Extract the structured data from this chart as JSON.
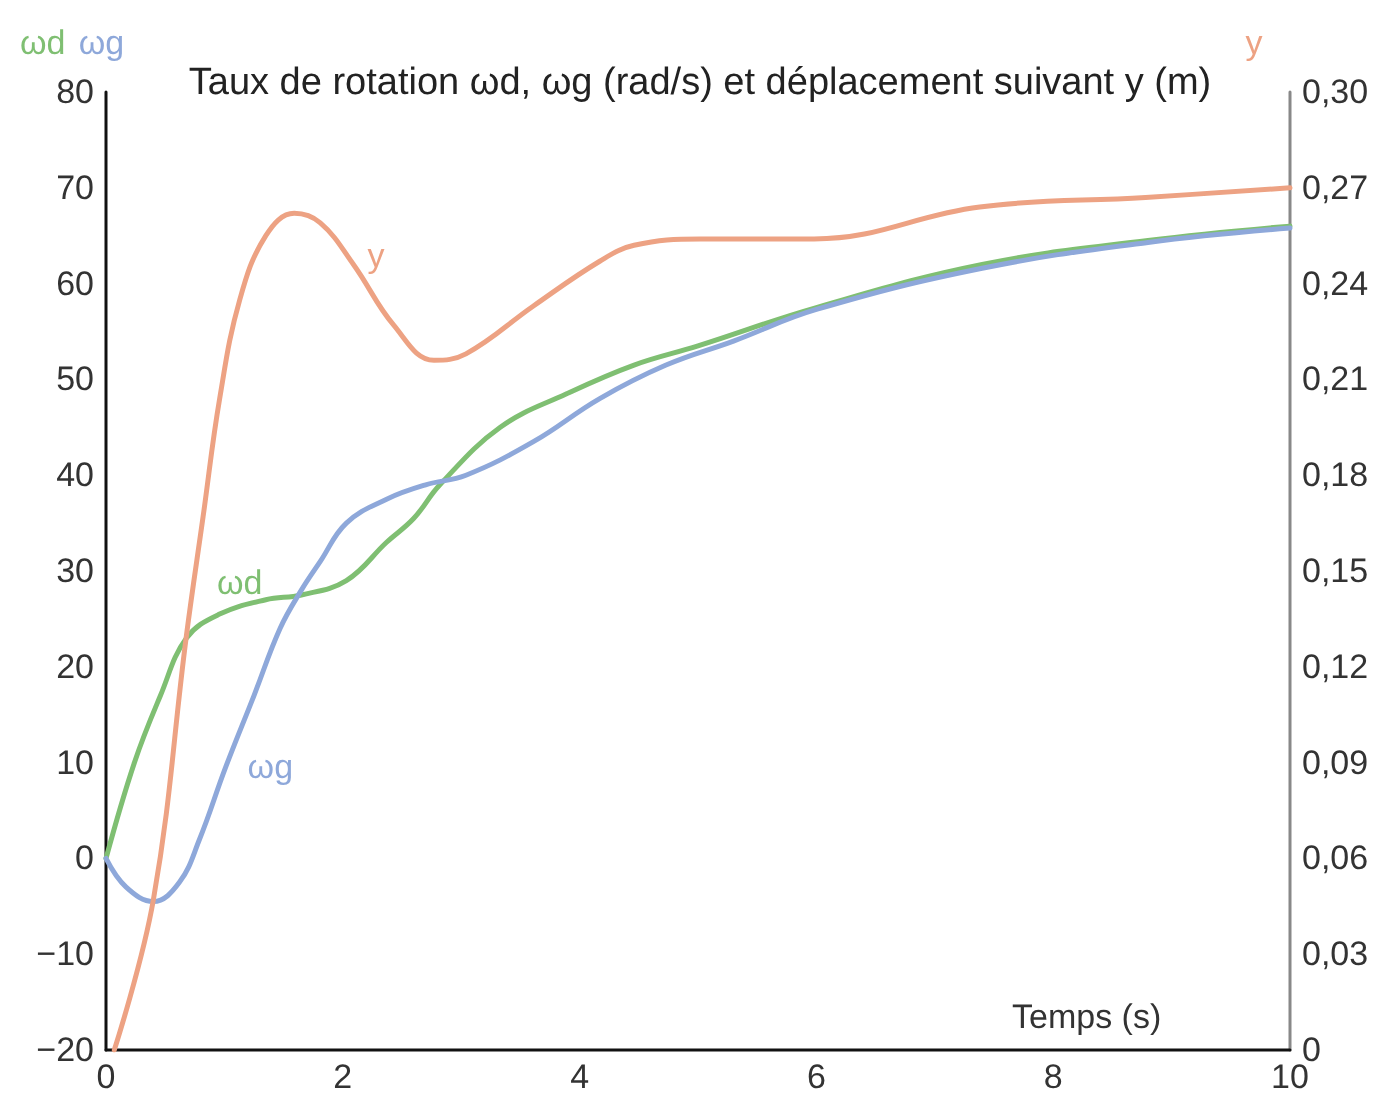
{
  "chart_data": {
    "type": "line",
    "title": "Taux de rotation ωd, ωg (rad/s) et déplacement suivant y (m)",
    "xlabel": "Temps (s)",
    "ylabel": "ωd ωg",
    "y2label": "y",
    "xlim": [
      0,
      10
    ],
    "xticks": [
      0,
      2,
      4,
      6,
      8,
      10
    ],
    "ylim": [
      -20,
      80
    ],
    "yticks": [
      {
        "value": -20,
        "label": "−20"
      },
      {
        "value": -10,
        "label": "−10"
      },
      0,
      10,
      20,
      30,
      40,
      50,
      60,
      70,
      80
    ],
    "y2lim": [
      0,
      0.3
    ],
    "y2ticks": [
      0,
      {
        "value": 0.03,
        "label": "0,03"
      },
      {
        "value": 0.06,
        "label": "0,06"
      },
      {
        "value": 0.09,
        "label": "0,09"
      },
      {
        "value": 0.12,
        "label": "0,12"
      },
      {
        "value": 0.15,
        "label": "0,15"
      },
      {
        "value": 0.18,
        "label": "0,18"
      },
      {
        "value": 0.21,
        "label": "0,21"
      },
      {
        "value": 0.24,
        "label": "0,24"
      },
      {
        "value": 0.27,
        "label": "0,27"
      },
      {
        "value": 0.3,
        "label": "0,30"
      }
    ],
    "series": [
      {
        "name": "ωd",
        "color": "#7fbf72",
        "x": [
          0,
          0.24,
          0.46,
          0.68,
          0.96,
          1.35,
          1.65,
          2.03,
          2.37,
          2.6,
          2.82,
          3.33,
          3.89,
          4.46,
          5.0,
          6.0,
          7.4,
          8.8,
          10
        ],
        "values": [
          0,
          10,
          17,
          23,
          25.5,
          27,
          27.5,
          29,
          33,
          35.5,
          39,
          45,
          48.5,
          51.5,
          53.5,
          57.5,
          62,
          64.5,
          66
        ]
      },
      {
        "name": "ωg",
        "color": "#8ea8da",
        "x": [
          0,
          0.17,
          0.4,
          0.62,
          0.79,
          1.01,
          1.25,
          1.47,
          1.65,
          1.81,
          2.03,
          2.37,
          2.7,
          3.04,
          3.61,
          4.17,
          4.73,
          5.3,
          6.0,
          7.4,
          8.8,
          10
        ],
        "values": [
          0,
          -3,
          -4.5,
          -2.5,
          2,
          9.5,
          17,
          24,
          28,
          31,
          35,
          37.5,
          39,
          40,
          43.5,
          48,
          51.5,
          54,
          57.3,
          61.6,
          64.3,
          65.8
        ]
      },
      {
        "name": "y",
        "color": "#eda283",
        "axis": "y2",
        "x": [
          0.07,
          0.4,
          0.68,
          0.82,
          0.96,
          1.13,
          1.35,
          1.59,
          1.81,
          2.09,
          2.43,
          2.77,
          3.04,
          3.61,
          4.17,
          4.46,
          5.02,
          5.98,
          7.38,
          8.78,
          10
        ],
        "values": [
          0,
          0.047,
          0.13,
          0.167,
          0.204,
          0.235,
          0.255,
          0.262,
          0.259,
          0.246,
          0.227,
          0.216,
          0.218,
          0.233,
          0.247,
          0.252,
          0.254,
          0.254,
          0.264,
          0.267,
          0.27
        ]
      }
    ]
  }
}
